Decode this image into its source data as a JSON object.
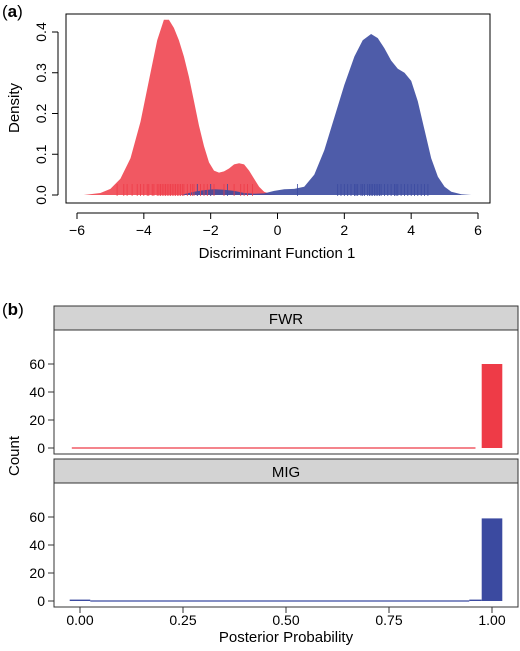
{
  "panel_a": {
    "label_prefix": "(",
    "label_letter": "a",
    "label_suffix": ")"
  },
  "panel_b": {
    "label_prefix": "(",
    "label_letter": "b",
    "label_suffix": ")"
  },
  "colors": {
    "red": "#ee3b47",
    "blue": "#3b4aa0",
    "strip_bg": "#d3d3d3"
  },
  "chart_data": [
    {
      "type": "area",
      "title": "",
      "xlabel": "Discriminant Function 1",
      "ylabel": "Density",
      "xlim": [
        -6,
        6
      ],
      "ylim": [
        0,
        0.45
      ],
      "xticks": [
        "−6",
        "−4",
        "−2",
        "0",
        "2",
        "4",
        "6"
      ],
      "xtick_values": [
        -6,
        -4,
        -2,
        0,
        2,
        4,
        6
      ],
      "yticks": [
        "0.0",
        "0.1",
        "0.2",
        "0.3",
        "0.4"
      ],
      "ytick_values": [
        0,
        0.1,
        0.2,
        0.3,
        0.4
      ],
      "series": [
        {
          "color": "#ee3b47",
          "x": [
            -5.8,
            -5.3,
            -5.0,
            -4.7,
            -4.4,
            -4.1,
            -3.8,
            -3.6,
            -3.4,
            -3.25,
            -3.1,
            -2.95,
            -2.8,
            -2.65,
            -2.5,
            -2.35,
            -2.2,
            -2.05,
            -1.9,
            -1.75,
            -1.6,
            -1.45,
            -1.3,
            -1.15,
            -1.0,
            -0.85,
            -0.7,
            -0.55,
            -0.4,
            -0.2,
            0.0
          ],
          "y": [
            0.0,
            0.005,
            0.015,
            0.04,
            0.09,
            0.18,
            0.3,
            0.38,
            0.43,
            0.43,
            0.41,
            0.38,
            0.34,
            0.29,
            0.23,
            0.17,
            0.12,
            0.08,
            0.06,
            0.055,
            0.058,
            0.065,
            0.075,
            0.078,
            0.075,
            0.06,
            0.04,
            0.02,
            0.008,
            0.002,
            0.0
          ]
        },
        {
          "color": "#3b4aa0",
          "x": [
            -2.9,
            -2.5,
            -2.2,
            -1.9,
            -1.6,
            -1.3,
            -1.0,
            -0.7,
            -0.4,
            -0.1,
            0.2,
            0.5,
            0.8,
            1.1,
            1.4,
            1.7,
            2.0,
            2.3,
            2.55,
            2.8,
            3.0,
            3.2,
            3.4,
            3.6,
            3.8,
            4.0,
            4.2,
            4.4,
            4.6,
            4.8,
            5.0,
            5.2,
            5.5,
            5.8
          ],
          "y": [
            0.0,
            0.008,
            0.012,
            0.014,
            0.013,
            0.01,
            0.005,
            0.003,
            0.004,
            0.01,
            0.014,
            0.015,
            0.02,
            0.05,
            0.11,
            0.19,
            0.27,
            0.34,
            0.38,
            0.395,
            0.385,
            0.36,
            0.33,
            0.31,
            0.3,
            0.28,
            0.23,
            0.16,
            0.09,
            0.045,
            0.02,
            0.008,
            0.002,
            0.0
          ]
        }
      ],
      "rug": [
        {
          "color": "#ee3b47",
          "x": [
            -4.8,
            -4.6,
            -4.5,
            -4.35,
            -4.2,
            -4.1,
            -4.0,
            -3.9,
            -3.85,
            -3.75,
            -3.7,
            -3.6,
            -3.55,
            -3.5,
            -3.45,
            -3.4,
            -3.35,
            -3.3,
            -3.25,
            -3.2,
            -3.15,
            -3.1,
            -3.05,
            -3.0,
            -2.95,
            -2.9,
            -2.85,
            -2.8,
            -2.7,
            -2.6,
            -2.55,
            -2.5,
            -2.4,
            -2.3,
            -2.2,
            -2.1,
            -2.0,
            -1.9,
            -1.6,
            -1.3,
            -1.1,
            -1.0,
            -0.9,
            -0.75
          ]
        },
        {
          "color": "#3b4aa0",
          "x": [
            -2.4,
            -2.0,
            -1.5,
            0.6,
            1.8,
            1.9,
            2.0,
            2.1,
            2.2,
            2.3,
            2.35,
            2.4,
            2.5,
            2.55,
            2.6,
            2.7,
            2.75,
            2.8,
            2.85,
            2.9,
            2.95,
            3.0,
            3.05,
            3.1,
            3.2,
            3.3,
            3.4,
            3.5,
            3.55,
            3.6,
            3.7,
            3.8,
            3.9,
            4.0,
            4.1,
            4.2,
            4.3,
            4.4,
            4.5
          ]
        }
      ]
    },
    {
      "type": "bar",
      "facet": "FWR",
      "title": "",
      "xlabel": "Posterior Probability",
      "ylabel": "Count",
      "xlim": [
        0,
        1
      ],
      "ylim": [
        0,
        65
      ],
      "yticks": [
        "0",
        "20",
        "40",
        "60"
      ],
      "ytick_values": [
        0,
        20,
        40,
        60
      ],
      "color": "#ee3b47",
      "bins": [
        {
          "x0": -0.02,
          "x1": 0.96,
          "value": 0
        },
        {
          "x0": 0.975,
          "x1": 1.025,
          "value": 60
        }
      ]
    },
    {
      "type": "bar",
      "facet": "MIG",
      "title": "",
      "xlabel": "Posterior Probability",
      "ylabel": "Count",
      "xlim": [
        0,
        1
      ],
      "ylim": [
        0,
        65
      ],
      "xticks": [
        "0.00",
        "0.25",
        "0.50",
        "0.75",
        "1.00"
      ],
      "xtick_values": [
        0,
        0.25,
        0.5,
        0.75,
        1.0
      ],
      "yticks": [
        "0",
        "20",
        "40",
        "60"
      ],
      "ytick_values": [
        0,
        20,
        40,
        60
      ],
      "color": "#3b4aa0",
      "bins": [
        {
          "x0": -0.025,
          "x1": 0.025,
          "value": 1
        },
        {
          "x0": 0.025,
          "x1": 0.945,
          "value": 0
        },
        {
          "x0": 0.945,
          "x1": 0.975,
          "value": 1
        },
        {
          "x0": 0.975,
          "x1": 1.025,
          "value": 59
        }
      ]
    }
  ]
}
